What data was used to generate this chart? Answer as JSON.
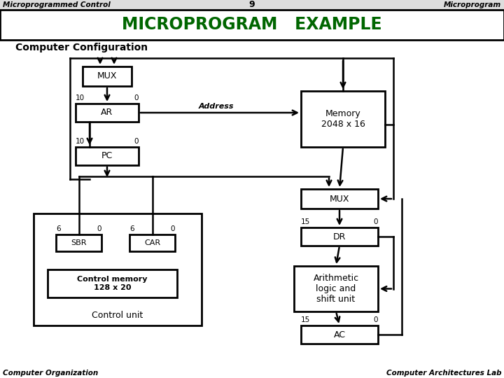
{
  "title_left": "Microprogrammed Control",
  "title_center": "9",
  "title_right": "Microprogram",
  "main_title": "MICROPROGRAM   EXAMPLE",
  "section_title": "Computer Configuration",
  "footer_left": "Computer Organization",
  "footer_right": "Computer Architectures Lab",
  "title_color": "#006600",
  "bg_color": "#ffffff"
}
